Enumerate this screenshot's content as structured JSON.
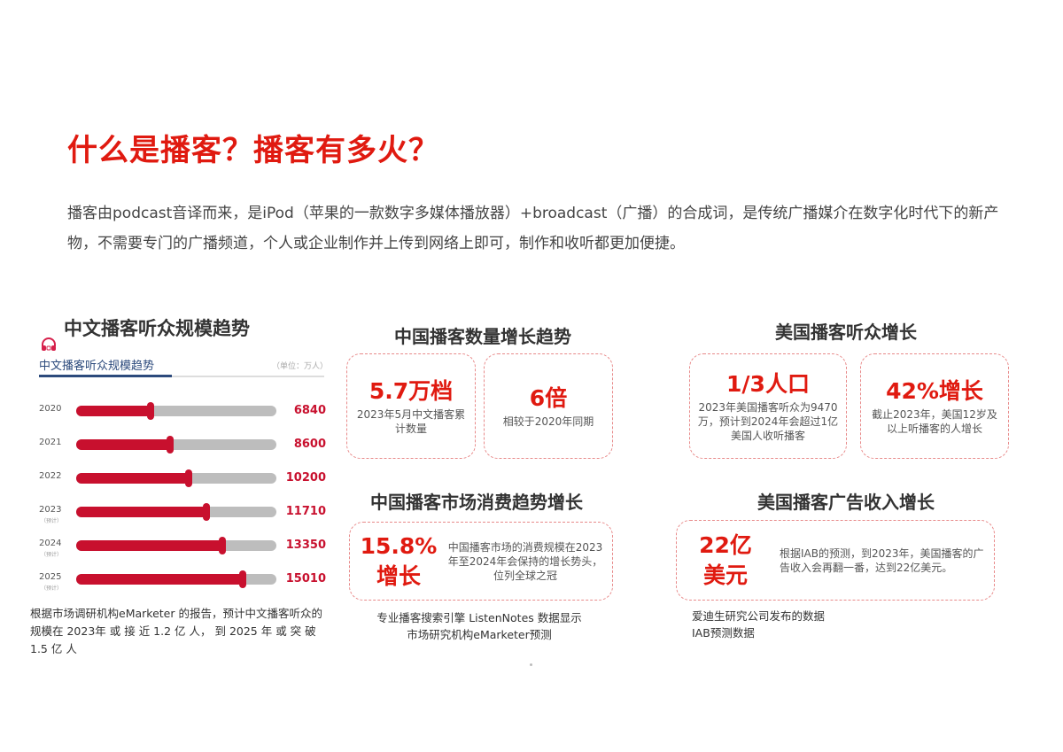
{
  "header": {
    "title": "什么是播客？播客有多火？",
    "intro": "播客由podcast音译而来，是iPod（苹果的一款数字多媒体播放器）+broadcast（广播）的合成词，是传统广播媒介在数字化时代下的新产物，不需要专门的广播频道，个人或企业制作并上传到网络上即可，制作和收听都更加便捷。"
  },
  "section1": {
    "title": "中文播客听众规模趋势",
    "icon": "headphone-icon",
    "chart_subtitle": "中文播客听众规模趋势",
    "unit": "（单位：万人）",
    "rows": [
      {
        "year": "2020",
        "est": "",
        "value": "6840",
        "pct": 37
      },
      {
        "year": "2021",
        "est": "",
        "value": "8600",
        "pct": 47
      },
      {
        "year": "2022",
        "est": "",
        "value": "10200",
        "pct": 56
      },
      {
        "year": "2023",
        "est": "（预计）",
        "value": "11710",
        "pct": 65
      },
      {
        "year": "2024",
        "est": "（预计）",
        "value": "13350",
        "pct": 73
      },
      {
        "year": "2025",
        "est": "（预计）",
        "value": "15010",
        "pct": 83
      }
    ],
    "note": "根据市场调研机构eMarketer 的报告，预计中文播客听众的规模在 2023年 或 接 近 1.2 亿 人， 到 2025 年 或 突 破 1.5 亿 人"
  },
  "section2": {
    "title": "中国播客数量增长趋势",
    "cards": [
      {
        "big": "5.7万档",
        "desc": "2023年5月中文播客累计数量"
      },
      {
        "big": "6倍",
        "desc": "相较于2020年同期"
      }
    ]
  },
  "section3": {
    "title": "中国播客市场消费趋势增长",
    "big_line1": "15.8%",
    "big_line2": "增长",
    "desc": "中国播客市场的消费规模在2023年至2024年会保持的增长势头，位列全球之冠",
    "source_line1": "专业播客搜索引擎 ListenNotes 数据显示",
    "source_line2": "市场研究机构eMarketer预测"
  },
  "section4": {
    "title": "美国播客听众增长",
    "cards": [
      {
        "big": "1/3人口",
        "desc": "2023年美国播客听众为9470万，预计到2024年会超过1亿美国人收听播客"
      },
      {
        "big": "42%增长",
        "desc": "截止2023年，美国12岁及以上听播客的人增长"
      }
    ]
  },
  "section5": {
    "title": "美国播客广告收入增长",
    "big_line1": "22亿",
    "big_line2": "美元",
    "desc": "根据IAB的预测，到2023年，美国播客的广告收入会再翻一番，达到22亿美元。",
    "source_line1": "爱迪生研究公司发布的数据",
    "source_line2": "IAB预测数据"
  },
  "colors": {
    "accent_red": "#e01a10",
    "bar_red": "#c8102e",
    "bar_gray": "#bdbdbd",
    "navy": "#2c4a7c",
    "card_border": "#e88a8a"
  },
  "chart_data": {
    "type": "bar",
    "orientation": "horizontal",
    "title": "中文播客听众规模趋势",
    "unit": "万人",
    "categories": [
      "2020",
      "2021",
      "2022",
      "2023（预计）",
      "2024（预计）",
      "2025（预计）"
    ],
    "values": [
      6840,
      8600,
      10200,
      11710,
      13350,
      15010
    ],
    "xlabel": "",
    "ylabel": "",
    "grid": false
  }
}
